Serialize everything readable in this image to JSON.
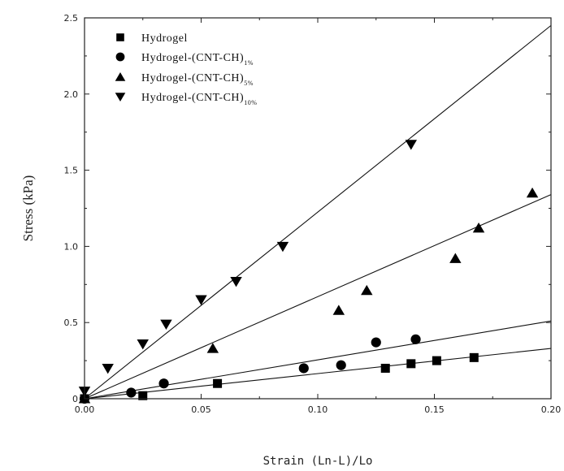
{
  "chart_data": {
    "type": "scatter",
    "xlabel": "Strain  (Ln-L)/Lo",
    "ylabel": "Stress (kPa)",
    "xlim": [
      0,
      0.2
    ],
    "ylim": [
      0,
      2.5
    ],
    "x_ticks": [
      "0.00",
      "0.05",
      "0.10",
      "0.15",
      "0.20"
    ],
    "y_ticks": [
      "0",
      "0.5",
      "1.0",
      "1.5",
      "2.0",
      "2.5"
    ],
    "legend_position": "top-left",
    "series": [
      {
        "name": "Hydrogel",
        "name_sub": "",
        "marker": "square",
        "points": [
          [
            0.0,
            0.0
          ],
          [
            0.025,
            0.02
          ],
          [
            0.057,
            0.1
          ],
          [
            0.129,
            0.2
          ],
          [
            0.14,
            0.23
          ],
          [
            0.151,
            0.25
          ],
          [
            0.167,
            0.27
          ]
        ],
        "fit": [
          [
            0.0,
            0.0
          ],
          [
            0.2,
            0.33
          ]
        ]
      },
      {
        "name": "Hydrogel-(CNT-CH)",
        "name_sub": "1%",
        "marker": "circle",
        "points": [
          [
            0.0,
            0.0
          ],
          [
            0.02,
            0.04
          ],
          [
            0.034,
            0.1
          ],
          [
            0.094,
            0.2
          ],
          [
            0.11,
            0.22
          ],
          [
            0.125,
            0.37
          ],
          [
            0.142,
            0.39
          ]
        ],
        "fit": [
          [
            0.0,
            0.0
          ],
          [
            0.2,
            0.51
          ]
        ]
      },
      {
        "name": "Hydrogel-(CNT-CH)",
        "name_sub": "5%",
        "marker": "triangle-up",
        "points": [
          [
            0.0,
            0.0
          ],
          [
            0.055,
            0.33
          ],
          [
            0.109,
            0.58
          ],
          [
            0.121,
            0.71
          ],
          [
            0.159,
            0.92
          ],
          [
            0.169,
            1.12
          ],
          [
            0.192,
            1.35
          ]
        ],
        "fit": [
          [
            0.0,
            0.0
          ],
          [
            0.2,
            1.34
          ]
        ]
      },
      {
        "name": "Hydrogel-(CNT-CH)",
        "name_sub": "10%",
        "marker": "triangle-down",
        "points": [
          [
            0.0,
            0.05
          ],
          [
            0.01,
            0.2
          ],
          [
            0.025,
            0.36
          ],
          [
            0.035,
            0.49
          ],
          [
            0.05,
            0.65
          ],
          [
            0.065,
            0.77
          ],
          [
            0.085,
            1.0
          ],
          [
            0.14,
            1.67
          ]
        ],
        "fit": [
          [
            0.0,
            0.0
          ],
          [
            0.2,
            2.45
          ]
        ]
      }
    ]
  }
}
